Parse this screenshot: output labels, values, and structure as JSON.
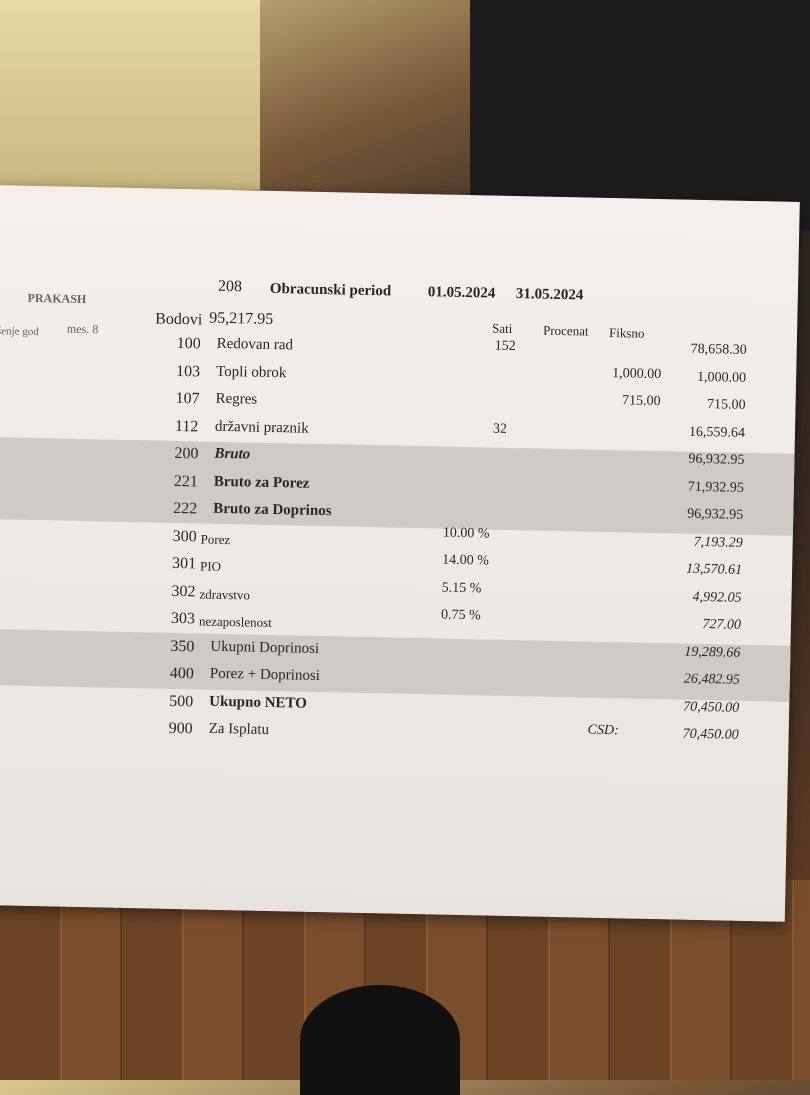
{
  "header": {
    "name": "PRAKASH",
    "left_fragment": "šenje god",
    "mes_label": "mes. 8",
    "code": "208",
    "period_label": "Obracunski period",
    "period_from": "01.05.2024",
    "period_to": "31.05.2024",
    "bodovi_label": "Bodovi",
    "bodovi_value": "95,217.95"
  },
  "columns": {
    "sati": "Sati",
    "procenat": "Procenat",
    "fiksno": "Fiksno"
  },
  "rows": [
    {
      "code": "100",
      "label": "Redovan rad",
      "sati": "152",
      "procenat": "",
      "fiksno": "",
      "amount": "78,658.30"
    },
    {
      "code": "103",
      "label": "Topli obrok",
      "sati": "",
      "procenat": "",
      "fiksno": "1,000.00",
      "amount": "1,000.00"
    },
    {
      "code": "107",
      "label": "Regres",
      "sati": "",
      "procenat": "",
      "fiksno": "715.00",
      "amount": "715.00"
    },
    {
      "code": "112",
      "label": "državni praznik",
      "sati": "32",
      "procenat": "",
      "fiksno": "",
      "amount": "16,559.64"
    },
    {
      "code": "200",
      "label": "Bruto",
      "sati": "",
      "procenat": "",
      "fiksno": "",
      "amount": "96,932.95"
    },
    {
      "code": "221",
      "label": "Bruto za Porez",
      "sati": "",
      "procenat": "",
      "fiksno": "",
      "amount": "71,932.95"
    },
    {
      "code": "222",
      "label": "Bruto za Doprinos",
      "sati": "",
      "procenat": "",
      "fiksno": "",
      "amount": "96,932.95"
    },
    {
      "code": "300",
      "label": "Porez",
      "sati": "",
      "procenat": "10.00 %",
      "fiksno": "",
      "amount": "7,193.29"
    },
    {
      "code": "301",
      "label": "PIO",
      "sati": "",
      "procenat": "14.00 %",
      "fiksno": "",
      "amount": "13,570.61"
    },
    {
      "code": "302",
      "label": "zdravstvo",
      "sati": "",
      "procenat": "5.15 %",
      "fiksno": "",
      "amount": "4,992.05"
    },
    {
      "code": "303",
      "label": "nezaposlenost",
      "sati": "",
      "procenat": "0.75 %",
      "fiksno": "",
      "amount": "727.00"
    },
    {
      "code": "350",
      "label": "Ukupni Doprinosi",
      "sati": "",
      "procenat": "",
      "fiksno": "",
      "amount": "19,289.66"
    },
    {
      "code": "400",
      "label": "Porez + Doprinosi",
      "sati": "",
      "procenat": "",
      "fiksno": "",
      "amount": "26,482.95"
    },
    {
      "code": "500",
      "label": "Ukupno NETO",
      "sati": "",
      "procenat": "",
      "fiksno": "",
      "amount": "70,450.00"
    },
    {
      "code": "900",
      "label": "Za Isplatu",
      "sati": "",
      "procenat": "",
      "fiksno": "CSD:",
      "amount": "70,450.00"
    }
  ]
}
